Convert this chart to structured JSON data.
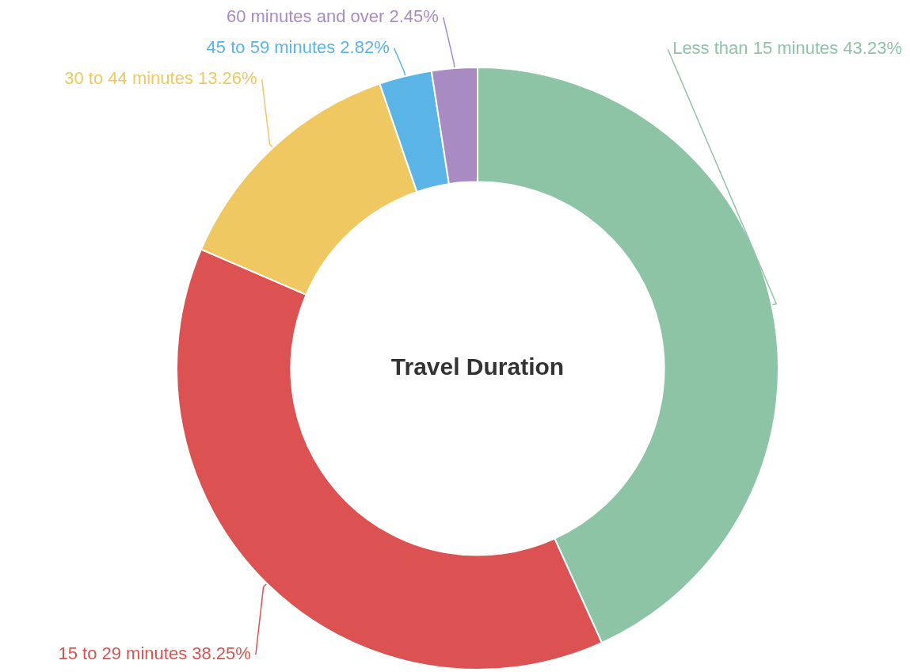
{
  "chart_data": {
    "type": "donut",
    "title": "Travel Duration",
    "categories": [
      "Less than 15 minutes",
      "15 to 29 minutes",
      "30 to 44 minutes",
      "45 to 59 minutes",
      "60 minutes and over"
    ],
    "values": [
      43.23,
      38.25,
      13.26,
      2.82,
      2.45
    ],
    "value_labels": [
      "43.23%",
      "38.25%",
      "13.26%",
      "2.82%",
      "2.45%"
    ],
    "colors": [
      "#8ec4a6",
      "#dc5252",
      "#f0c862",
      "#5ab4e5",
      "#a98bc4"
    ]
  }
}
